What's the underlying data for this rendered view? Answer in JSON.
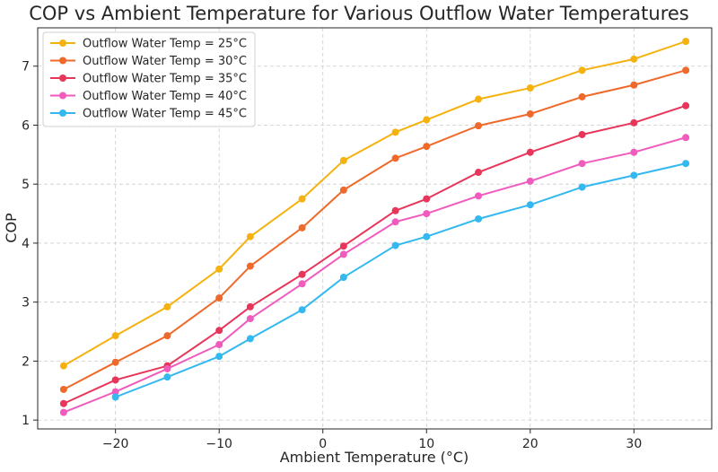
{
  "chart_data": {
    "type": "line",
    "title": "COP vs Ambient Temperature for Various Outflow Water Temperatures",
    "xlabel": "Ambient Temperature (°C)",
    "ylabel": "COP",
    "xlim": [
      -27.5,
      37.5
    ],
    "ylim": [
      0.85,
      7.65
    ],
    "xticks": [
      -20,
      -10,
      0,
      10,
      20,
      30
    ],
    "xtick_labels": [
      "−20",
      "−10",
      "0",
      "10",
      "20",
      "30"
    ],
    "yticks": [
      1,
      2,
      3,
      4,
      5,
      6,
      7
    ],
    "ytick_labels": [
      "1",
      "2",
      "3",
      "4",
      "5",
      "6",
      "7"
    ],
    "grid": true,
    "legend_position": "top-left",
    "x": [
      -25,
      -20,
      -15,
      -10,
      -7,
      -2,
      2,
      7,
      10,
      15,
      20,
      25,
      30,
      35
    ],
    "series": [
      {
        "name": "Outflow Water Temp = 25°C",
        "color": "#f5b20f",
        "values": [
          1.92,
          2.43,
          2.92,
          3.56,
          4.11,
          4.75,
          5.4,
          5.88,
          6.09,
          6.44,
          6.63,
          6.93,
          7.12,
          7.42
        ]
      },
      {
        "name": "Outflow Water Temp = 30°C",
        "color": "#ef6a2a",
        "values": [
          1.52,
          1.98,
          2.43,
          3.07,
          3.61,
          4.26,
          4.9,
          5.44,
          5.64,
          5.99,
          6.19,
          6.48,
          6.68,
          6.93
        ]
      },
      {
        "name": "Outflow Water Temp = 35°C",
        "color": "#e8365a",
        "values": [
          1.28,
          1.68,
          1.92,
          2.52,
          2.92,
          3.47,
          3.95,
          4.55,
          4.75,
          5.2,
          5.54,
          5.84,
          6.04,
          6.33
        ]
      },
      {
        "name": "Outflow Water Temp = 40°C",
        "color": "#f05bbd",
        "values": [
          1.13,
          1.48,
          1.87,
          2.28,
          2.72,
          3.31,
          3.81,
          4.36,
          4.5,
          4.8,
          5.05,
          5.35,
          5.54,
          5.79
        ]
      },
      {
        "name": "Outflow Water Temp = 45°C",
        "color": "#33b8f0",
        "values": [
          null,
          1.39,
          1.73,
          2.08,
          2.38,
          2.87,
          3.42,
          3.96,
          4.11,
          4.41,
          4.65,
          4.95,
          5.15,
          5.35
        ]
      }
    ]
  }
}
